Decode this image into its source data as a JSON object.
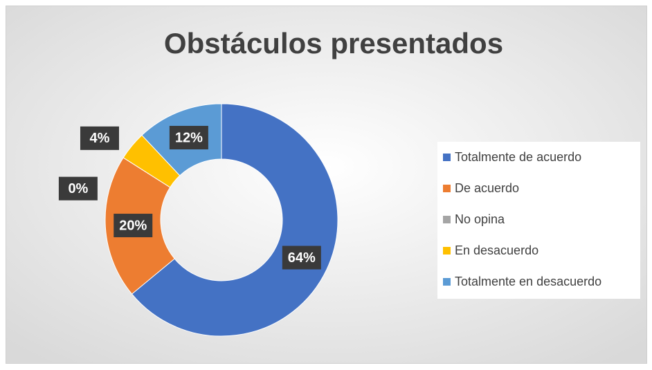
{
  "chart_data": {
    "type": "donut",
    "title": "Obstáculos presentados",
    "categories": [
      "Totalmente de acuerdo",
      "De acuerdo",
      "No opina",
      "En desacuerdo",
      "Totalmente en desacuerdo"
    ],
    "values": [
      64,
      20,
      0,
      4,
      12
    ],
    "value_labels": [
      "64%",
      "20%",
      "0%",
      "4%",
      "12%"
    ],
    "colors": [
      "#4472c4",
      "#ed7d31",
      "#a5a5a5",
      "#ffc000",
      "#5b9bd5"
    ],
    "legend": "right"
  }
}
